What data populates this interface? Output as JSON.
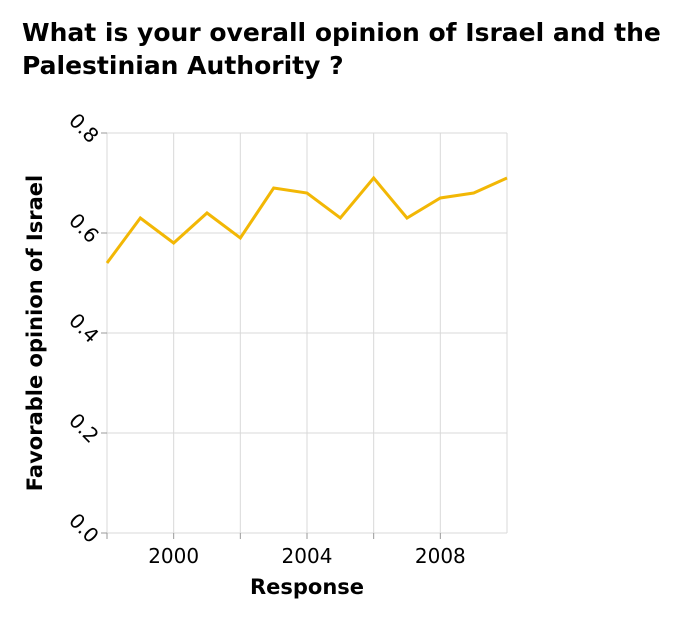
{
  "chart_data": {
    "type": "line",
    "title": "What is your overall opinion of Israel and the Palestinian Authority ?",
    "xlabel": "Response",
    "ylabel": "Favorable opinion of Israel",
    "xlim": [
      1998,
      2010
    ],
    "ylim": [
      0.0,
      0.8
    ],
    "x_ticks": [
      2000,
      2004,
      2008
    ],
    "x_tick_labels": [
      "2000",
      "2004",
      "2008"
    ],
    "y_ticks": [
      0.0,
      0.2,
      0.4,
      0.6,
      0.8
    ],
    "y_tick_labels": [
      "0.0",
      "0.2",
      "0.4",
      "0.6",
      "0.8"
    ],
    "grid": true,
    "legend": "none",
    "series": [
      {
        "color": "#f2b705",
        "x": [
          1998,
          1999,
          2000,
          2001,
          2002,
          2003,
          2004,
          2005,
          2006,
          2007,
          2008,
          2009,
          2010
        ],
        "y": [
          0.54,
          0.63,
          0.58,
          0.64,
          0.59,
          0.69,
          0.68,
          0.63,
          0.71,
          0.63,
          0.67,
          0.68,
          0.71
        ]
      }
    ]
  }
}
